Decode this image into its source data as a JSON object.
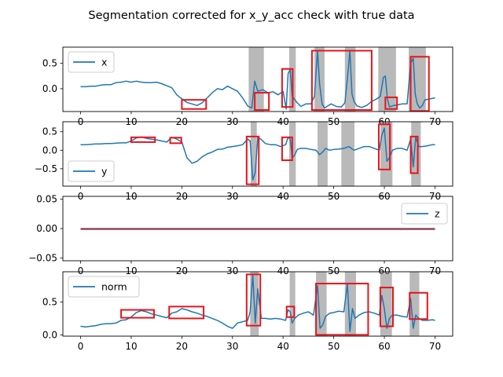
{
  "chart_data": {
    "title": "Segmentation corrected for x_y_acc check with true data",
    "colors": {
      "line": "#1f77b4",
      "rect": "#e8141a",
      "shade": "#7f7f7f",
      "flat": "#d62728"
    },
    "panels": [
      {
        "name": "x",
        "type": "line",
        "legend": "x",
        "legend_loc": "upper-left",
        "xlim": [
          -3.5,
          73.5
        ],
        "ylim": [
          -0.45,
          0.82
        ],
        "xticks": [
          0,
          10,
          20,
          30,
          40,
          50,
          60,
          70
        ],
        "yticks": [
          0.0,
          0.5
        ],
        "ytick_labels": [
          "0.0",
          "0.5"
        ],
        "x": [
          0,
          1,
          2,
          3,
          4,
          5,
          6,
          7,
          8,
          9,
          10,
          11,
          12,
          13,
          14,
          15,
          16,
          17,
          18,
          19,
          20,
          21,
          22,
          23,
          24,
          25,
          26,
          27,
          28,
          29,
          30,
          31,
          32,
          33,
          33.8,
          34.4,
          35,
          36,
          37,
          38,
          39,
          40,
          40.6,
          41,
          41.4,
          41.8,
          42.2,
          42.8,
          43.5,
          44.5,
          45.5,
          46.2,
          46.8,
          47.2,
          47.7,
          48.2,
          48.8,
          49.5,
          50.5,
          51.5,
          52.2,
          52.7,
          53.2,
          53.6,
          54,
          54.6,
          55.5,
          56.5,
          57.5,
          58.5,
          59.2,
          59.8,
          60.2,
          60.6,
          61,
          61.5,
          62.5,
          63.5,
          64.5,
          65.2,
          65.7,
          66.1,
          66.5,
          67,
          67.5,
          68,
          69,
          70
        ],
        "y": [
          0.04,
          0.04,
          0.05,
          0.05,
          0.07,
          0.08,
          0.08,
          0.12,
          0.13,
          0.15,
          0.13,
          0.15,
          0.13,
          0.12,
          0.12,
          0.13,
          0.1,
          0.06,
          0.02,
          -0.12,
          -0.2,
          -0.27,
          -0.3,
          -0.33,
          -0.28,
          -0.18,
          -0.08,
          0.0,
          -0.02,
          0.05,
          0.0,
          -0.05,
          -0.18,
          -0.34,
          -0.38,
          0.15,
          -0.05,
          -0.02,
          -0.08,
          -0.06,
          -0.12,
          -0.05,
          -0.4,
          0.3,
          0.38,
          -0.15,
          -0.2,
          -0.28,
          -0.35,
          -0.3,
          -0.3,
          -0.15,
          0.75,
          0.1,
          -0.3,
          -0.38,
          -0.34,
          -0.3,
          -0.35,
          -0.36,
          -0.28,
          0.2,
          0.75,
          -0.1,
          -0.25,
          -0.34,
          -0.37,
          -0.33,
          -0.25,
          -0.2,
          -0.15,
          0.22,
          0.25,
          -0.2,
          -0.36,
          -0.34,
          -0.32,
          -0.3,
          -0.3,
          0.5,
          0.6,
          -0.1,
          -0.3,
          -0.38,
          -0.33,
          -0.22,
          -0.2,
          -0.18
        ],
        "shaded": [
          [
            33.2,
            36.2
          ],
          [
            41.2,
            42.5
          ],
          [
            46.2,
            48.2
          ],
          [
            52.2,
            54.3
          ],
          [
            58.8,
            62.3
          ],
          [
            64.8,
            68.2
          ]
        ],
        "boxes": [
          [
            20,
            -0.4,
            24.8,
            -0.22
          ],
          [
            34.4,
            -0.42,
            37.2,
            -0.08
          ],
          [
            39.8,
            -0.36,
            41.9,
            0.39
          ],
          [
            45.7,
            -0.42,
            57.5,
            0.75
          ],
          [
            60.2,
            -0.4,
            62.5,
            -0.17
          ],
          [
            65.2,
            -0.44,
            68.8,
            0.63
          ]
        ]
      },
      {
        "name": "y",
        "type": "line",
        "legend": "y",
        "legend_loc": "lower-left",
        "xlim": [
          -3.5,
          73.5
        ],
        "ylim": [
          -0.97,
          0.77
        ],
        "xticks": [
          0,
          10,
          20,
          30,
          40,
          50,
          60,
          70
        ],
        "yticks": [
          -0.5,
          0.0,
          0.5
        ],
        "ytick_labels": [
          "−0.5",
          "0.0",
          "0.5"
        ],
        "x": [
          0,
          1,
          2,
          3,
          4,
          5,
          6,
          7,
          8,
          9,
          10,
          11,
          12,
          13,
          14,
          15,
          16,
          17,
          18,
          19,
          20,
          21,
          22,
          23,
          24,
          25,
          26,
          27,
          28,
          29,
          30,
          31,
          32,
          33,
          33.5,
          34,
          34.5,
          35,
          35.6,
          36.5,
          37.5,
          38.5,
          39.5,
          40.5,
          41,
          41.4,
          41.8,
          42.2,
          42.8,
          43.5,
          44.5,
          45.5,
          46.5,
          47.2,
          47.8,
          48.4,
          49.2,
          50,
          51,
          52,
          53,
          54,
          55,
          56,
          57,
          58,
          59,
          59.5,
          60,
          60.5,
          61,
          61.6,
          62.5,
          63.5,
          64.5,
          65.2,
          65.7,
          66.2,
          66.8,
          67.5,
          68.5,
          69.5,
          70
        ],
        "y": [
          0.15,
          0.15,
          0.16,
          0.17,
          0.17,
          0.18,
          0.18,
          0.19,
          0.2,
          0.2,
          0.25,
          0.33,
          0.36,
          0.32,
          0.3,
          0.28,
          0.25,
          0.22,
          0.35,
          0.3,
          0.22,
          -0.2,
          -0.35,
          -0.3,
          -0.18,
          -0.1,
          -0.05,
          0.02,
          0.03,
          0.08,
          0.1,
          0.12,
          0.15,
          0.3,
          0.25,
          -0.8,
          -0.6,
          0.35,
          0.3,
          0.18,
          0.15,
          0.15,
          0.1,
          0.15,
          0.35,
          0.3,
          -0.2,
          -0.15,
          0.02,
          0.05,
          0.05,
          0.02,
          0.0,
          -0.12,
          -0.05,
          0.05,
          0.0,
          0.02,
          0.03,
          0.05,
          0.1,
          0.0,
          0.05,
          0.1,
          0.1,
          0.05,
          0.0,
          0.4,
          0.6,
          -0.3,
          -0.2,
          0.0,
          0.05,
          0.05,
          0.0,
          0.3,
          -0.45,
          0.35,
          0.1,
          0.1,
          0.12,
          0.15,
          0.15
        ],
        "shaded": [
          [
            33.6,
            34.8
          ],
          [
            41.2,
            42.5
          ],
          [
            46.8,
            48.8
          ],
          [
            51.5,
            54.1
          ],
          [
            59.2,
            61.6
          ],
          [
            65.3,
            67.2
          ]
        ],
        "boxes": [
          [
            10,
            0.22,
            14.7,
            0.35
          ],
          [
            17.7,
            0.19,
            19.9,
            0.34
          ],
          [
            32.8,
            -0.92,
            35.2,
            0.37
          ],
          [
            39.8,
            -0.27,
            41.8,
            0.35
          ],
          [
            58.9,
            -0.52,
            61.1,
            0.7
          ],
          [
            65.2,
            -0.62,
            66.6,
            0.37
          ]
        ]
      },
      {
        "name": "z",
        "type": "line",
        "legend": "z",
        "legend_loc": "upper-right",
        "xlim": [
          -3.5,
          73.5
        ],
        "ylim": [
          -0.055,
          0.055
        ],
        "xticks": [
          0,
          10,
          20,
          30,
          40,
          50,
          60,
          70
        ],
        "yticks": [
          -0.05,
          0.0,
          0.05
        ],
        "ytick_labels": [
          "−0.05",
          "0.00",
          "0.05"
        ],
        "x": [
          0,
          70
        ],
        "y": [
          0,
          0
        ],
        "shaded": [],
        "boxes": []
      },
      {
        "name": "norm",
        "type": "line",
        "legend": "norm",
        "legend_loc": "upper-left",
        "xlim": [
          -3.5,
          73.5
        ],
        "ylim": [
          -0.02,
          0.96
        ],
        "xticks": [
          0,
          10,
          20,
          30,
          40,
          50,
          60,
          70
        ],
        "yticks": [
          0.0,
          0.5
        ],
        "ytick_labels": [
          "0.0",
          "0.5"
        ],
        "x": [
          0,
          1,
          2,
          3,
          4,
          5,
          6,
          7,
          8,
          9,
          10,
          11,
          12,
          13,
          14,
          15,
          16,
          17,
          18,
          19,
          20,
          21,
          22,
          23,
          24,
          25,
          26,
          27,
          28,
          29,
          30,
          31,
          32,
          33,
          33.5,
          34,
          34.5,
          35,
          35.7,
          36.5,
          37.5,
          38.5,
          39.5,
          40.5,
          41,
          41.4,
          41.8,
          42.3,
          43,
          44,
          45,
          46,
          46.8,
          47.3,
          47.8,
          48.4,
          49.2,
          50,
          51,
          52,
          52.7,
          53.2,
          53.7,
          54.2,
          55,
          56,
          57,
          58,
          59,
          59.5,
          60,
          60.5,
          61,
          61.6,
          62.5,
          63.5,
          64.5,
          65.2,
          65.7,
          66.2,
          66.8,
          67.5,
          68.5,
          69.5,
          70
        ],
        "y": [
          0.13,
          0.12,
          0.13,
          0.14,
          0.16,
          0.17,
          0.17,
          0.18,
          0.22,
          0.23,
          0.27,
          0.34,
          0.37,
          0.35,
          0.32,
          0.3,
          0.28,
          0.26,
          0.33,
          0.35,
          0.4,
          0.38,
          0.35,
          0.33,
          0.3,
          0.28,
          0.25,
          0.22,
          0.18,
          0.13,
          0.1,
          0.18,
          0.2,
          0.22,
          0.35,
          0.92,
          0.18,
          0.7,
          0.25,
          0.25,
          0.24,
          0.25,
          0.24,
          0.22,
          0.38,
          0.35,
          0.18,
          0.25,
          0.3,
          0.33,
          0.35,
          0.3,
          0.75,
          0.1,
          0.15,
          0.28,
          0.33,
          0.34,
          0.36,
          0.35,
          0.78,
          0.05,
          0.4,
          0.25,
          0.3,
          0.34,
          0.35,
          0.33,
          0.3,
          0.6,
          0.4,
          0.1,
          0.25,
          0.3,
          0.3,
          0.28,
          0.27,
          0.55,
          0.1,
          0.3,
          0.25,
          0.22,
          0.22,
          0.23,
          0.22
        ],
        "shaded": [
          [
            33.5,
            35.2
          ],
          [
            41.3,
            42.4
          ],
          [
            46.5,
            48.6
          ],
          [
            52.2,
            54.4
          ],
          [
            59.2,
            61.5
          ],
          [
            65.0,
            66.9
          ]
        ],
        "boxes": [
          [
            8,
            0.26,
            14.5,
            0.38
          ],
          [
            17.5,
            0.25,
            24.3,
            0.43
          ],
          [
            32.8,
            0.14,
            35.5,
            0.92
          ],
          [
            40.7,
            0.27,
            42.2,
            0.43
          ],
          [
            46.5,
            0.0,
            56.8,
            0.78
          ],
          [
            59.2,
            0.13,
            61.7,
            0.72
          ],
          [
            65.0,
            0.24,
            68.5,
            0.64
          ]
        ]
      }
    ]
  }
}
